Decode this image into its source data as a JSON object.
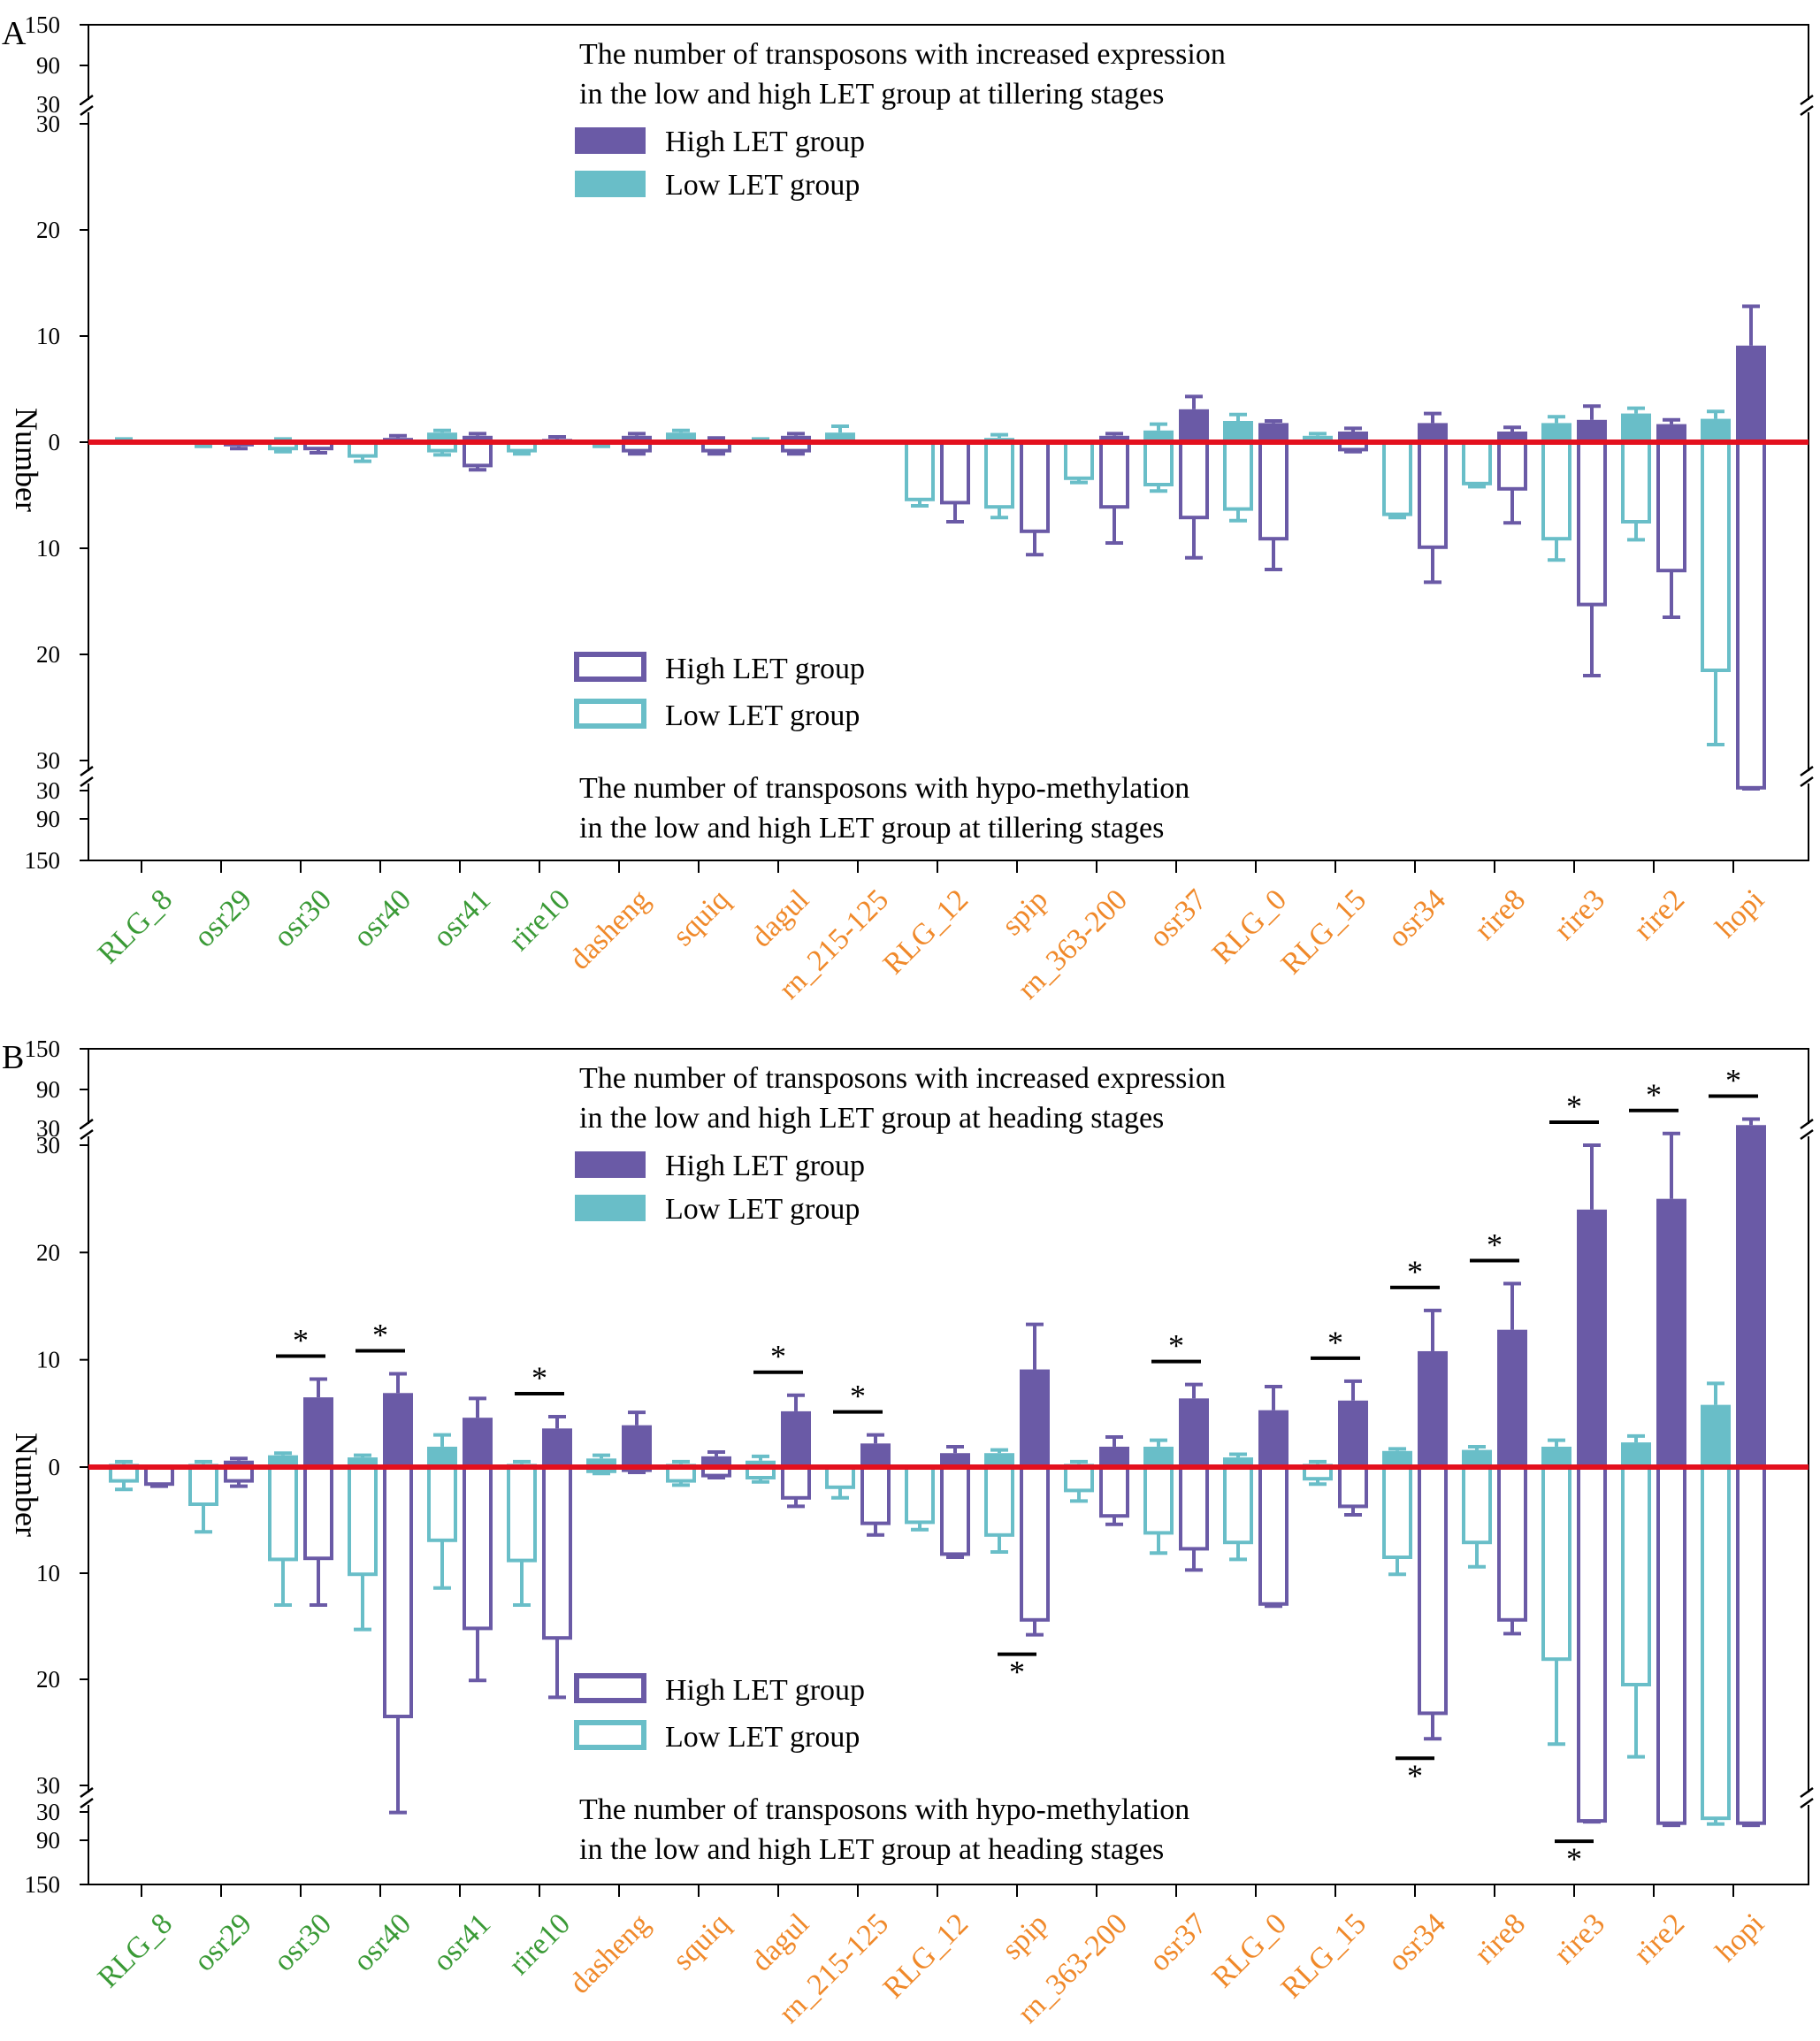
{
  "colors": {
    "high": "#6a5aa6",
    "low": "#69bec8",
    "zero_line": "#e3101e",
    "group_green": "#3a9a36",
    "group_orange": "#f0892a",
    "axis": "#000000"
  },
  "chart_data": [
    {
      "type": "bar",
      "panel_letter": "A",
      "ylabel": "Number",
      "top_title": [
        "The number of transposons with increased expression",
        "in the low and high LET group at tillering stages"
      ],
      "bottom_title": [
        "The number of transposons with hypo-methylation",
        "in the low and high LET group at tillering stages"
      ],
      "legend_top": [
        {
          "label": "High LET group",
          "series": "high"
        },
        {
          "label": "Low LET group",
          "series": "low"
        }
      ],
      "legend_bottom": [
        {
          "label": "High LET group",
          "series": "high"
        },
        {
          "label": "Low LET group",
          "series": "low"
        }
      ],
      "yticks_top": [
        "150",
        "90",
        "30",
        "30",
        "20",
        "10",
        "0"
      ],
      "yticks_bottom": [
        "10",
        "20",
        "30",
        "30",
        "90",
        "150"
      ],
      "categories": [
        "RLG_8",
        "osr29",
        "osr30",
        "osr40",
        "osr41",
        "rire10",
        "dasheng",
        "squiq",
        "dagul",
        "rn_215-125",
        "RLG_12",
        "spip",
        "rn_363-200",
        "osr37",
        "RLG_0",
        "RLG_15",
        "osr34",
        "rire8",
        "rire3",
        "rire2",
        "hopi"
      ],
      "category_groups": [
        "green",
        "green",
        "green",
        "green",
        "green",
        "green",
        "orange",
        "orange",
        "orange",
        "orange",
        "orange",
        "orange",
        "orange",
        "orange",
        "orange",
        "orange",
        "orange",
        "orange",
        "orange",
        "orange",
        "orange"
      ],
      "series": [
        {
          "name": "Low LET group - increased expression",
          "values": [
            0.1,
            -0.2,
            0.1,
            -0.2,
            0.9,
            -0.4,
            -0.2,
            0.9,
            0.1,
            0.9,
            0,
            0.4,
            0,
            1.1,
            2,
            0.6,
            0,
            0,
            1.8,
            2.7,
            2.2
          ],
          "errors": [
            0.2,
            0.2,
            0.2,
            0.2,
            0.2,
            0.2,
            0.2,
            0.2,
            0.2,
            0.6,
            0,
            0.3,
            0,
            0.6,
            0.6,
            0.2,
            0,
            0,
            0.6,
            0.5,
            0.7
          ]
        },
        {
          "name": "High LET group - increased expression",
          "values": [
            0,
            -0.4,
            -0.2,
            0.4,
            0.6,
            0.3,
            0.6,
            0.2,
            0.6,
            0,
            0,
            0,
            0.6,
            3.1,
            1.8,
            1,
            1.8,
            1,
            2.1,
            1.7,
            9.1
          ],
          "errors": [
            0,
            0.2,
            0.2,
            0.2,
            0.2,
            0.2,
            0.2,
            0.2,
            0.2,
            0,
            0,
            0,
            0.2,
            1.2,
            0.2,
            0.3,
            0.9,
            0.4,
            1.3,
            0.4,
            3.7
          ]
        },
        {
          "name": "Low LET group - hypo-methylation",
          "values": [
            0,
            0,
            0.6,
            1.3,
            0.8,
            0.8,
            0,
            0,
            0,
            0,
            5.4,
            6.1,
            3.4,
            4,
            6.3,
            0,
            6.8,
            3.9,
            9.1,
            7.5,
            21.5
          ],
          "errors": [
            0,
            0,
            0.3,
            0.5,
            0.4,
            0.3,
            0,
            0,
            0,
            0,
            0.6,
            1,
            0.4,
            0.6,
            1.1,
            0,
            0.3,
            0.3,
            2,
            1.7,
            7
          ]
        },
        {
          "name": "High LET group - hypo-methylation",
          "values": [
            0,
            0,
            0.6,
            0,
            2.2,
            0,
            0.8,
            0.8,
            0.8,
            0,
            5.7,
            8.4,
            6.1,
            7.1,
            9.1,
            0.7,
            9.9,
            4.4,
            15.3,
            12.1,
            31
          ],
          "errors": [
            0,
            0,
            0.4,
            0,
            0.4,
            0,
            0.3,
            0.3,
            0.3,
            0,
            1.8,
            2.2,
            3.4,
            3.8,
            2.9,
            0.2,
            3.3,
            3.2,
            6.7,
            4.4,
            1.5
          ]
        }
      ]
    },
    {
      "type": "bar",
      "panel_letter": "B",
      "ylabel": "Number",
      "top_title": [
        "The number of transposons with increased expression",
        "in the low and high LET group at heading stages"
      ],
      "bottom_title": [
        "The number of transposons with hypo-methylation",
        "in the low and high LET group at heading stages"
      ],
      "legend_top": [
        {
          "label": "High LET group",
          "series": "high"
        },
        {
          "label": "Low LET group",
          "series": "low"
        }
      ],
      "legend_bottom": [
        {
          "label": "High LET group",
          "series": "high"
        },
        {
          "label": "Low LET group",
          "series": "low"
        }
      ],
      "yticks_top": [
        "150",
        "90",
        "30",
        "30",
        "20",
        "10",
        "0"
      ],
      "yticks_bottom": [
        "10",
        "20",
        "30",
        "30",
        "90",
        "150"
      ],
      "categories": [
        "RLG_8",
        "osr29",
        "osr30",
        "osr40",
        "osr41",
        "rire10",
        "dasheng",
        "squiq",
        "dagul",
        "rn_215-125",
        "RLG_12",
        "spip",
        "rn_363-200",
        "osr37",
        "RLG_0",
        "RLG_15",
        "osr34",
        "rire8",
        "rire3",
        "rire2",
        "hopi"
      ],
      "category_groups": [
        "green",
        "green",
        "green",
        "green",
        "green",
        "green",
        "orange",
        "orange",
        "orange",
        "orange",
        "orange",
        "orange",
        "orange",
        "orange",
        "orange",
        "orange",
        "orange",
        "orange",
        "orange",
        "orange",
        "orange"
      ],
      "series": [
        {
          "name": "Low LET group - increased expression",
          "values": [
            0.3,
            0.3,
            1.1,
            0.9,
            1.9,
            0.3,
            0.8,
            0.3,
            0.6,
            0,
            0,
            1.3,
            0.3,
            1.9,
            0.9,
            0.3,
            1.5,
            1.6,
            1.9,
            2.3,
            5.8
          ],
          "errors": [
            0.2,
            0.2,
            0.2,
            0.2,
            1.1,
            0.2,
            0.3,
            0.2,
            0.4,
            0,
            0,
            0.3,
            0.2,
            0.6,
            0.3,
            0.2,
            0.2,
            0.3,
            0.6,
            0.6,
            2
          ]
        },
        {
          "name": "High LET group - increased expression",
          "values": [
            0,
            0.6,
            6.5,
            6.9,
            4.6,
            3.6,
            3.9,
            1,
            5.2,
            2.2,
            1.3,
            9.1,
            1.9,
            6.4,
            5.3,
            6.2,
            10.8,
            12.8,
            24,
            25,
            40
          ],
          "errors": [
            0,
            0.2,
            1.7,
            1.8,
            1.8,
            1.1,
            1.2,
            0.4,
            1.5,
            0.8,
            0.6,
            4.2,
            0.9,
            1.3,
            2.2,
            1.8,
            3.8,
            4.3,
            6,
            6,
            8
          ]
        },
        {
          "name": "Low LET group - hypo-methylation",
          "values": [
            1.3,
            3.5,
            8.7,
            10.1,
            6.9,
            8.8,
            0.4,
            1.3,
            1,
            1.9,
            5.2,
            6.4,
            2.2,
            6.2,
            7.1,
            1.1,
            8.5,
            7.1,
            18.1,
            20.5,
            40
          ],
          "errors": [
            0.8,
            2.6,
            4.3,
            5.2,
            4.5,
            4.2,
            0.2,
            0.4,
            0.4,
            1,
            0.7,
            1.6,
            1,
            1.9,
            1.6,
            0.5,
            1.6,
            2.3,
            8,
            6.8,
            12
          ]
        },
        {
          "name": "High LET group - hypo-methylation",
          "values": [
            1.6,
            1.3,
            8.6,
            23.5,
            15.2,
            16.1,
            0.3,
            0.8,
            2.9,
            5.3,
            8.2,
            14.4,
            4.6,
            7.7,
            12.9,
            3.7,
            23.2,
            14.4,
            45,
            50,
            50
          ],
          "errors": [
            0.2,
            0.5,
            4.4,
            7.3,
            4.9,
            5.6,
            0.2,
            0.2,
            0.8,
            1.1,
            0.3,
            1.4,
            0.8,
            2,
            0.2,
            0.8,
            2.4,
            1.3,
            2,
            5,
            5
          ]
        }
      ],
      "significance_top": [
        "osr30",
        "osr40",
        "rire10",
        "dagul",
        "rn_215-125",
        "osr37",
        "RLG_15",
        "osr34",
        "rire8",
        "rire3",
        "rire2",
        "hopi"
      ],
      "significance_bottom": [
        "spip",
        "osr34",
        "rire3"
      ],
      "significance_mark": "*"
    }
  ]
}
